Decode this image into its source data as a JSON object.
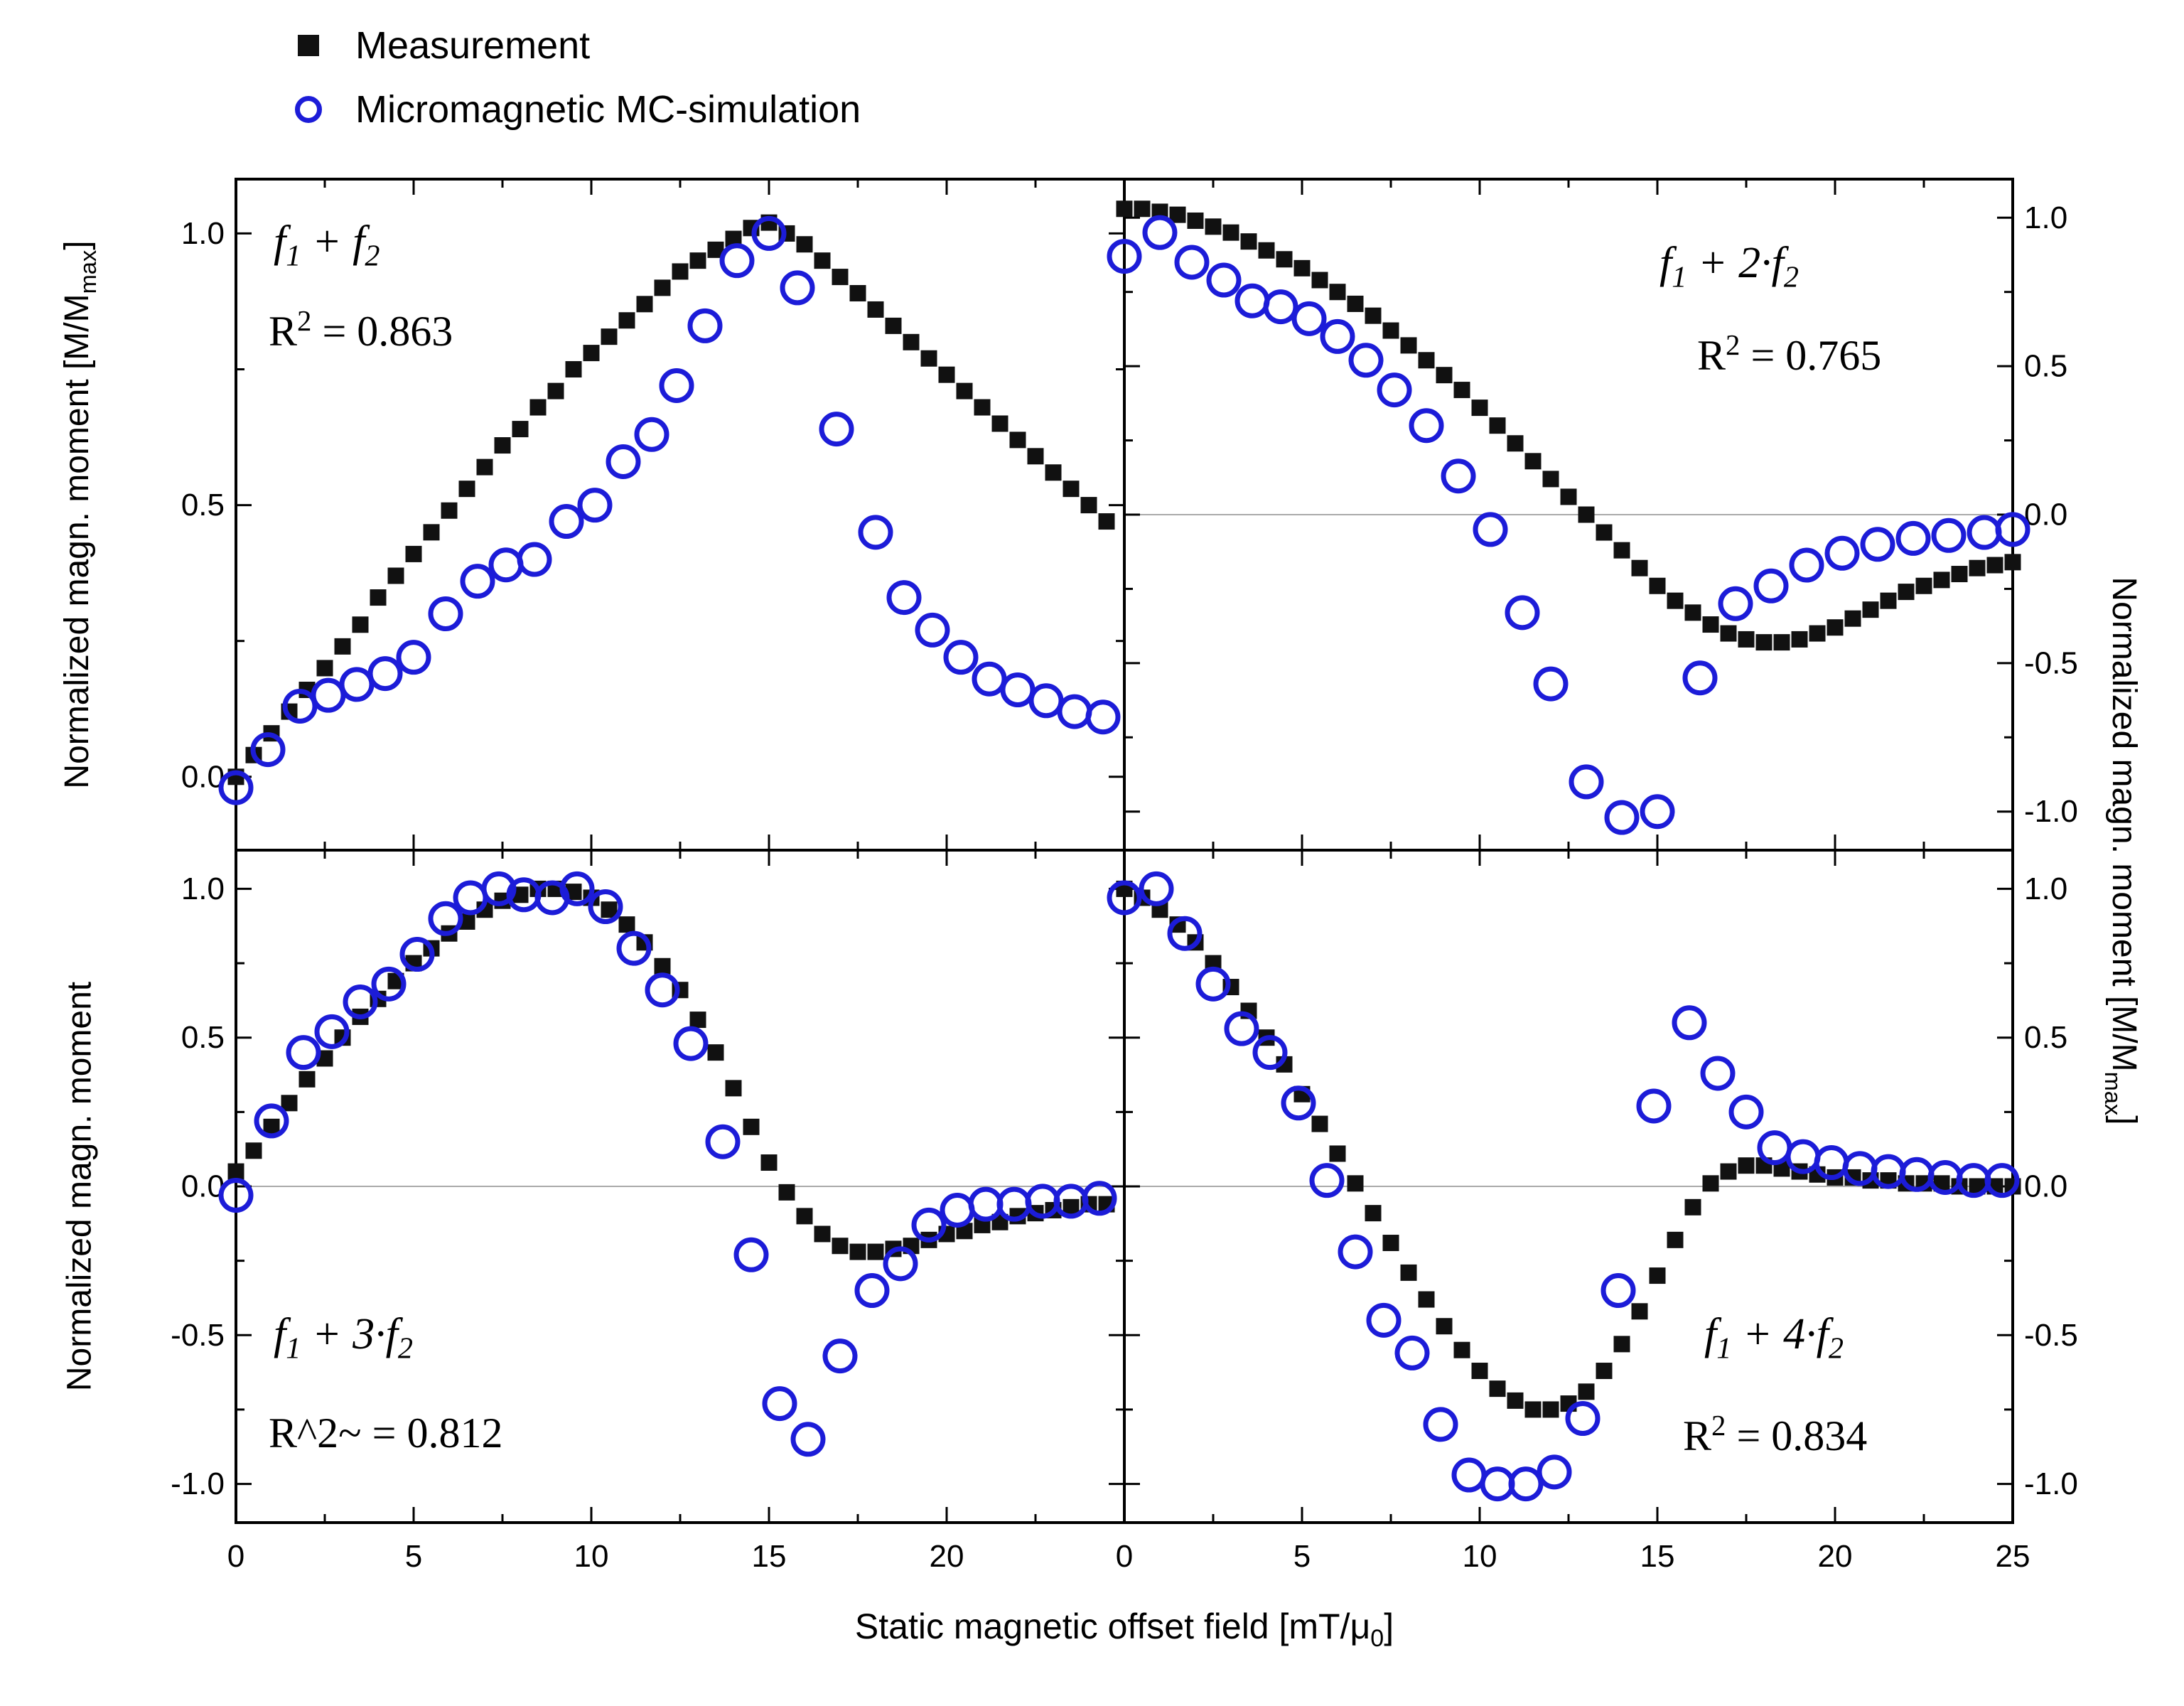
{
  "legend": {
    "items": [
      {
        "label": "Measurement",
        "marker": "filled-square-icon"
      },
      {
        "label": "Micromagnetic MC-simulation",
        "marker": "open-circle-icon"
      }
    ]
  },
  "chart_data": {
    "type": "scatter",
    "layout": "2x2-shared-axes",
    "xlabel": "Static magnetic offset field [mT/μ~0~]",
    "ylabel_left_top": "Normalized magn. moment [M/M~max~]",
    "ylabel_left_bottom": "Normalized magn. moment",
    "ylabel_right": "Normalized magn. moment [M/M~max~]",
    "colors": {
      "measurement": "#111111",
      "simulation": "#1c1cd8",
      "zero_line": "#aaaaaa",
      "axis": "#000000"
    },
    "panels": [
      {
        "id": "top-left",
        "title": "f~1~ + f~2~",
        "r2": "R^2^ = 0.863",
        "xlim": [
          0,
          25
        ],
        "ylim": [
          -0.135,
          1.1
        ],
        "x_major": [
          0,
          5,
          10,
          15,
          20,
          25
        ],
        "x_minor_step": 2.5,
        "y_major": [
          0,
          0.5,
          1.0
        ],
        "y_minor_step": 0.25,
        "y_tick_labels": [
          "0.0",
          "0.5",
          "1.0"
        ],
        "y_label_side": "left",
        "x_tick_labels": null,
        "zero_line": false,
        "series": {
          "measurement": {
            "x0": 0,
            "dx": 0.5,
            "y": [
              0.0,
              0.04,
              0.08,
              0.12,
              0.16,
              0.2,
              0.24,
              0.28,
              0.33,
              0.37,
              0.41,
              0.45,
              0.49,
              0.53,
              0.57,
              0.61,
              0.64,
              0.68,
              0.71,
              0.75,
              0.78,
              0.81,
              0.84,
              0.87,
              0.9,
              0.93,
              0.95,
              0.97,
              0.99,
              1.01,
              1.02,
              1.0,
              0.98,
              0.95,
              0.92,
              0.89,
              0.86,
              0.83,
              0.8,
              0.77,
              0.74,
              0.71,
              0.68,
              0.65,
              0.62,
              0.59,
              0.56,
              0.53,
              0.5,
              0.47
            ]
          },
          "simulation": {
            "points": [
              [
                0,
                -0.02
              ],
              [
                0.9,
                0.05
              ],
              [
                1.8,
                0.13
              ],
              [
                2.6,
                0.15
              ],
              [
                3.4,
                0.17
              ],
              [
                4.2,
                0.19
              ],
              [
                5,
                0.22
              ],
              [
                5.9,
                0.3
              ],
              [
                6.8,
                0.36
              ],
              [
                7.6,
                0.39
              ],
              [
                8.4,
                0.4
              ],
              [
                9.3,
                0.47
              ],
              [
                10.1,
                0.5
              ],
              [
                10.9,
                0.58
              ],
              [
                11.7,
                0.63
              ],
              [
                12.4,
                0.72
              ],
              [
                13.2,
                0.83
              ],
              [
                14.1,
                0.95
              ],
              [
                15,
                1.0
              ],
              [
                15.8,
                0.9
              ],
              [
                16.9,
                0.64
              ],
              [
                18,
                0.45
              ],
              [
                18.8,
                0.33
              ],
              [
                19.6,
                0.27
              ],
              [
                20.4,
                0.22
              ],
              [
                21.2,
                0.18
              ],
              [
                22,
                0.16
              ],
              [
                22.8,
                0.14
              ],
              [
                23.6,
                0.12
              ],
              [
                24.4,
                0.11
              ]
            ]
          }
        }
      },
      {
        "id": "top-right",
        "title": "f~1~ + 2·f~2~",
        "r2": "R^2^ = 0.765",
        "xlim": [
          0,
          25
        ],
        "ylim": [
          -1.13,
          1.13
        ],
        "x_major": [
          0,
          5,
          10,
          15,
          20,
          25
        ],
        "x_minor_step": 2.5,
        "y_major": [
          -1.0,
          -0.5,
          0,
          0.5,
          1.0
        ],
        "y_minor_step": 0.25,
        "y_tick_labels": [
          "-1.0",
          "-0.5",
          "0.0",
          "0.5",
          "1.0"
        ],
        "y_label_side": "right",
        "x_tick_labels": null,
        "zero_line": true,
        "series": {
          "measurement": {
            "x0": 0,
            "dx": 0.5,
            "y": [
              1.03,
              1.03,
              1.02,
              1.01,
              0.99,
              0.97,
              0.95,
              0.92,
              0.89,
              0.86,
              0.83,
              0.79,
              0.75,
              0.71,
              0.67,
              0.62,
              0.57,
              0.52,
              0.47,
              0.42,
              0.36,
              0.3,
              0.24,
              0.18,
              0.12,
              0.06,
              0.0,
              -0.06,
              -0.12,
              -0.18,
              -0.24,
              -0.29,
              -0.33,
              -0.37,
              -0.4,
              -0.42,
              -0.43,
              -0.43,
              -0.42,
              -0.4,
              -0.38,
              -0.35,
              -0.32,
              -0.29,
              -0.26,
              -0.24,
              -0.22,
              -0.2,
              -0.18,
              -0.17,
              -0.16
            ]
          },
          "simulation": {
            "points": [
              [
                0,
                0.87
              ],
              [
                1,
                0.95
              ],
              [
                1.9,
                0.85
              ],
              [
                2.8,
                0.79
              ],
              [
                3.6,
                0.72
              ],
              [
                4.4,
                0.7
              ],
              [
                5.2,
                0.66
              ],
              [
                6,
                0.6
              ],
              [
                6.8,
                0.52
              ],
              [
                7.6,
                0.42
              ],
              [
                8.5,
                0.3
              ],
              [
                9.4,
                0.13
              ],
              [
                10.3,
                -0.05
              ],
              [
                11.2,
                -0.33
              ],
              [
                12,
                -0.57
              ],
              [
                13,
                -0.9
              ],
              [
                14,
                -1.02
              ],
              [
                15,
                -1.0
              ],
              [
                16.2,
                -0.55
              ],
              [
                17.2,
                -0.3
              ],
              [
                18.2,
                -0.24
              ],
              [
                19.2,
                -0.17
              ],
              [
                20.2,
                -0.13
              ],
              [
                21.2,
                -0.1
              ],
              [
                22.2,
                -0.08
              ],
              [
                23.2,
                -0.07
              ],
              [
                24.2,
                -0.06
              ],
              [
                25,
                -0.05
              ]
            ]
          }
        }
      },
      {
        "id": "bottom-left",
        "title": "f~1~ + 3·f~2~",
        "r2": "R^2~ = 0.812",
        "xlim": [
          0,
          25
        ],
        "ylim": [
          -1.13,
          1.13
        ],
        "x_major": [
          0,
          5,
          10,
          15,
          20,
          25
        ],
        "x_minor_step": 2.5,
        "y_major": [
          -1.0,
          -0.5,
          0,
          0.5,
          1.0
        ],
        "y_minor_step": 0.25,
        "y_tick_labels": [
          "-1.0",
          "-0.5",
          "0.0",
          "0.5",
          "1.0"
        ],
        "y_label_side": "left",
        "x_tick_labels": {
          "values": [
            0,
            5,
            10,
            15,
            20
          ],
          "labels": [
            "0",
            "5",
            "10",
            "15",
            "20"
          ]
        },
        "zero_line": true,
        "series": {
          "measurement": {
            "x0": 0,
            "dx": 0.5,
            "y": [
              0.05,
              0.12,
              0.2,
              0.28,
              0.36,
              0.43,
              0.5,
              0.57,
              0.63,
              0.69,
              0.75,
              0.8,
              0.85,
              0.89,
              0.93,
              0.96,
              0.98,
              1.0,
              1.0,
              0.99,
              0.97,
              0.93,
              0.88,
              0.82,
              0.74,
              0.66,
              0.56,
              0.45,
              0.33,
              0.2,
              0.08,
              -0.02,
              -0.1,
              -0.16,
              -0.2,
              -0.22,
              -0.22,
              -0.21,
              -0.2,
              -0.18,
              -0.16,
              -0.15,
              -0.13,
              -0.12,
              -0.1,
              -0.09,
              -0.08,
              -0.07,
              -0.06,
              -0.06
            ]
          },
          "simulation": {
            "points": [
              [
                0,
                -0.03
              ],
              [
                1,
                0.22
              ],
              [
                1.9,
                0.45
              ],
              [
                2.7,
                0.52
              ],
              [
                3.5,
                0.62
              ],
              [
                4.3,
                0.68
              ],
              [
                5.1,
                0.78
              ],
              [
                5.9,
                0.9
              ],
              [
                6.6,
                0.97
              ],
              [
                7.4,
                1.0
              ],
              [
                8.1,
                0.98
              ],
              [
                8.9,
                0.97
              ],
              [
                9.6,
                1.0
              ],
              [
                10.4,
                0.94
              ],
              [
                11.2,
                0.8
              ],
              [
                12,
                0.66
              ],
              [
                12.8,
                0.48
              ],
              [
                13.7,
                0.15
              ],
              [
                14.5,
                -0.23
              ],
              [
                15.3,
                -0.73
              ],
              [
                16.1,
                -0.85
              ],
              [
                17,
                -0.57
              ],
              [
                17.9,
                -0.35
              ],
              [
                18.7,
                -0.26
              ],
              [
                19.5,
                -0.13
              ],
              [
                20.3,
                -0.08
              ],
              [
                21.1,
                -0.06
              ],
              [
                21.9,
                -0.06
              ],
              [
                22.7,
                -0.05
              ],
              [
                23.5,
                -0.05
              ],
              [
                24.3,
                -0.04
              ]
            ]
          }
        }
      },
      {
        "id": "bottom-right",
        "title": "f~1~ + 4·f~2~",
        "r2": "R^2^ = 0.834",
        "xlim": [
          0,
          25
        ],
        "ylim": [
          -1.13,
          1.13
        ],
        "x_major": [
          0,
          5,
          10,
          15,
          20,
          25
        ],
        "x_minor_step": 2.5,
        "y_major": [
          -1.0,
          -0.5,
          0,
          0.5,
          1.0
        ],
        "y_minor_step": 0.25,
        "y_tick_labels": [
          "-1.0",
          "-0.5",
          "0.0",
          "0.5",
          "1.0"
        ],
        "y_label_side": "right",
        "x_tick_labels": {
          "values": [
            0,
            5,
            10,
            15,
            20,
            25
          ],
          "labels": [
            "0",
            "5",
            "10",
            "15",
            "20",
            "25"
          ]
        },
        "zero_line": true,
        "series": {
          "measurement": {
            "x0": 0,
            "dx": 0.5,
            "y": [
              1.0,
              0.97,
              0.93,
              0.88,
              0.82,
              0.75,
              0.67,
              0.59,
              0.5,
              0.41,
              0.31,
              0.21,
              0.11,
              0.01,
              -0.09,
              -0.19,
              -0.29,
              -0.38,
              -0.47,
              -0.55,
              -0.62,
              -0.68,
              -0.72,
              -0.75,
              -0.75,
              -0.73,
              -0.69,
              -0.62,
              -0.53,
              -0.42,
              -0.3,
              -0.18,
              -0.07,
              0.01,
              0.05,
              0.07,
              0.07,
              0.06,
              0.05,
              0.04,
              0.03,
              0.03,
              0.02,
              0.02,
              0.01,
              0.01,
              0.01,
              0.0,
              0.0,
              0.0,
              0.0
            ]
          },
          "simulation": {
            "points": [
              [
                0,
                0.97
              ],
              [
                0.9,
                1.0
              ],
              [
                1.7,
                0.85
              ],
              [
                2.5,
                0.68
              ],
              [
                3.3,
                0.53
              ],
              [
                4.1,
                0.45
              ],
              [
                4.9,
                0.28
              ],
              [
                5.7,
                0.02
              ],
              [
                6.5,
                -0.22
              ],
              [
                7.3,
                -0.45
              ],
              [
                8.1,
                -0.56
              ],
              [
                8.9,
                -0.8
              ],
              [
                9.7,
                -0.97
              ],
              [
                10.5,
                -1.0
              ],
              [
                11.3,
                -1.0
              ],
              [
                12.1,
                -0.96
              ],
              [
                12.9,
                -0.78
              ],
              [
                13.9,
                -0.35
              ],
              [
                14.9,
                0.27
              ],
              [
                15.9,
                0.55
              ],
              [
                16.7,
                0.38
              ],
              [
                17.5,
                0.25
              ],
              [
                18.3,
                0.13
              ],
              [
                19.1,
                0.1
              ],
              [
                19.9,
                0.08
              ],
              [
                20.7,
                0.06
              ],
              [
                21.5,
                0.05
              ],
              [
                22.3,
                0.04
              ],
              [
                23.1,
                0.03
              ],
              [
                23.9,
                0.02
              ],
              [
                24.7,
                0.02
              ]
            ]
          }
        }
      }
    ]
  }
}
